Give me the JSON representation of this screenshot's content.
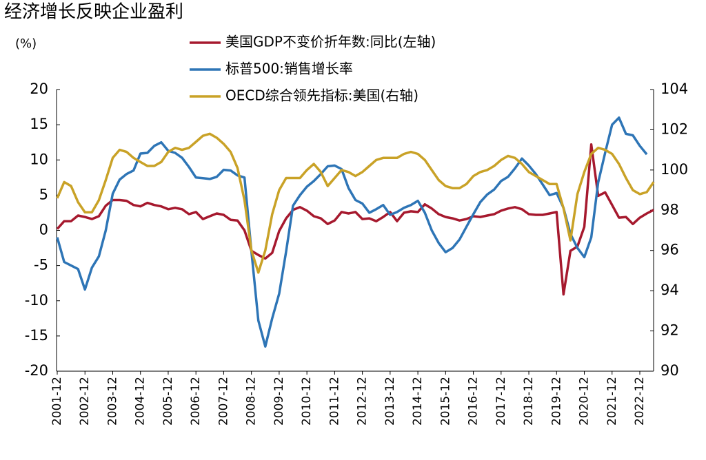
{
  "chart_data": {
    "type": "line",
    "title": "经济增长反映企业盈利",
    "y_unit": "(%)",
    "categories": [
      "2001-12",
      null,
      null,
      null,
      "2002-12",
      null,
      null,
      null,
      "2003-12",
      null,
      null,
      null,
      "2004-12",
      null,
      null,
      null,
      "2005-12",
      null,
      null,
      null,
      "2006-12",
      null,
      null,
      null,
      "2007-12",
      null,
      null,
      null,
      "2008-12",
      null,
      null,
      null,
      "2009-12",
      null,
      null,
      null,
      "2010-12",
      null,
      null,
      null,
      "2011-12",
      null,
      null,
      null,
      "2012-12",
      null,
      null,
      null,
      "2013-12",
      null,
      null,
      null,
      "2014-12",
      null,
      null,
      null,
      "2015-12",
      null,
      null,
      null,
      "2016-12",
      null,
      null,
      null,
      "2017-12",
      null,
      null,
      null,
      "2018-12",
      null,
      null,
      null,
      "2019-12",
      null,
      null,
      null,
      "2020-12",
      null,
      null,
      null,
      "2021-12",
      null,
      null,
      null,
      "2022-12",
      null,
      null
    ],
    "series": [
      {
        "name": "美国GDP不变价折年数:同比(左轴)",
        "color": "#a6192e",
        "axis": "y",
        "values": [
          0.2,
          1.3,
          1.3,
          2.1,
          1.9,
          1.6,
          2.0,
          3.5,
          4.3,
          4.3,
          4.2,
          3.6,
          3.4,
          3.9,
          3.6,
          3.4,
          3.0,
          3.2,
          3.0,
          2.3,
          2.6,
          1.6,
          2.0,
          2.4,
          2.2,
          1.5,
          1.4,
          0.0,
          -2.9,
          -3.5,
          -4.0,
          -3.2,
          -0.1,
          1.7,
          2.9,
          3.3,
          2.8,
          2.0,
          1.7,
          0.9,
          1.4,
          2.6,
          2.4,
          2.6,
          1.6,
          1.7,
          1.3,
          1.9,
          2.6,
          1.3,
          2.5,
          2.7,
          2.6,
          3.7,
          3.1,
          2.3,
          1.9,
          1.7,
          1.4,
          1.6,
          2.0,
          1.9,
          2.1,
          2.3,
          2.8,
          3.1,
          3.3,
          3.0,
          2.3,
          2.2,
          2.2,
          2.4,
          2.6,
          -9.1,
          -2.9,
          -2.3,
          0.5,
          12.2,
          4.9,
          5.4,
          3.6,
          1.8,
          1.9,
          0.9,
          1.8,
          2.4,
          2.9
        ]
      },
      {
        "name": "标普500:销售增长率",
        "color": "#2e75b6",
        "axis": "y",
        "values": [
          -1.0,
          -4.5,
          -5.0,
          -5.5,
          -8.4,
          -5.3,
          -3.7,
          0.0,
          5.2,
          7.2,
          8.0,
          8.5,
          10.9,
          11.0,
          12.0,
          12.5,
          11.3,
          11.0,
          10.3,
          9.0,
          7.5,
          7.4,
          7.3,
          7.6,
          8.6,
          8.5,
          7.8,
          7.5,
          -3.0,
          -12.8,
          -16.5,
          -12.5,
          -9.0,
          -3.0,
          3.5,
          5.0,
          6.2,
          7.0,
          8.0,
          9.1,
          9.2,
          8.7,
          6.0,
          4.3,
          3.8,
          2.5,
          3.0,
          3.6,
          2.2,
          2.6,
          3.2,
          3.6,
          4.2,
          2.5,
          0.0,
          -1.8,
          -3.1,
          -2.5,
          -1.3,
          0.5,
          2.3,
          4.0,
          5.1,
          5.8,
          7.0,
          7.6,
          8.8,
          10.2,
          9.2,
          8.0,
          6.5,
          5.0,
          5.3,
          3.2,
          -0.5,
          -2.5,
          -3.8,
          -1.0,
          6.8,
          11.0,
          15.0,
          16.0,
          13.7,
          13.5,
          12.0,
          10.8,
          null
        ]
      },
      {
        "name": "OECD综合领先指标:美国(右轴)",
        "color": "#c9a227",
        "axis": "y2",
        "values": [
          98.6,
          99.4,
          99.2,
          98.4,
          97.9,
          97.9,
          98.5,
          99.5,
          100.6,
          101.0,
          100.9,
          100.6,
          100.4,
          100.2,
          100.2,
          100.4,
          100.9,
          101.1,
          101.0,
          101.1,
          101.4,
          101.7,
          101.8,
          101.6,
          101.3,
          100.9,
          100.1,
          98.5,
          96.0,
          94.9,
          96.0,
          97.8,
          99.0,
          99.6,
          99.6,
          99.6,
          100.0,
          100.3,
          99.9,
          99.2,
          99.6,
          100.0,
          99.9,
          99.7,
          99.9,
          100.2,
          100.5,
          100.6,
          100.6,
          100.6,
          100.8,
          100.9,
          100.8,
          100.5,
          100.0,
          99.5,
          99.2,
          99.1,
          99.1,
          99.3,
          99.7,
          99.9,
          100.0,
          100.2,
          100.5,
          100.7,
          100.6,
          100.3,
          99.9,
          99.7,
          99.5,
          99.3,
          99.3,
          98.1,
          96.5,
          98.8,
          99.9,
          100.8,
          101.1,
          101.0,
          100.8,
          100.3,
          99.6,
          99.0,
          98.8,
          98.9,
          99.4
        ]
      }
    ],
    "ylim": [
      -20,
      20
    ],
    "yticks": [
      -20,
      -15,
      -10,
      -5,
      0,
      5,
      10,
      15,
      20
    ],
    "y2lim": [
      90,
      104
    ],
    "y2ticks": [
      90,
      92,
      94,
      96,
      98,
      100,
      102,
      104
    ],
    "grid": false
  }
}
